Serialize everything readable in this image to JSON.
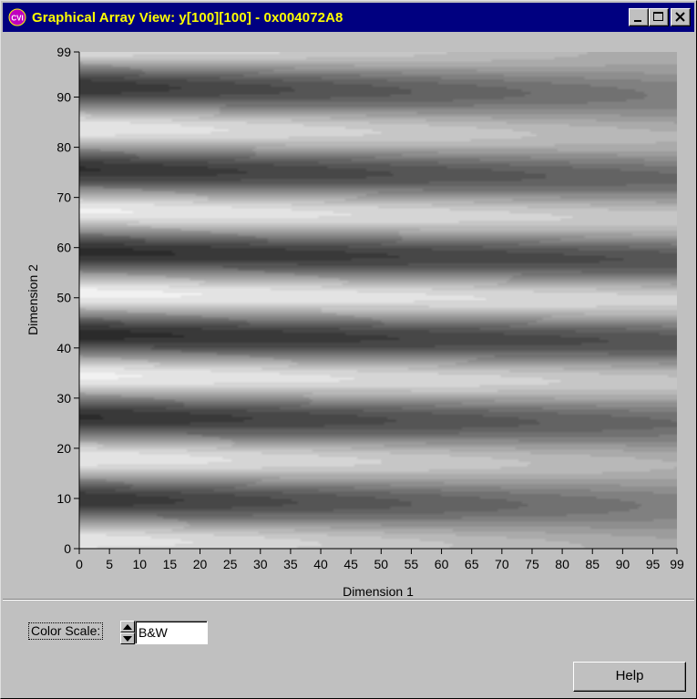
{
  "window": {
    "title": "Graphical Array View: y[100][100] - 0x004072A8",
    "app_icon_text": "CVI",
    "buttons": [
      "minimize",
      "maximize",
      "close"
    ]
  },
  "chart_data": {
    "type": "heatmap",
    "title": "",
    "xlabel": "Dimension 1",
    "ylabel": "Dimension 2",
    "xlim": [
      0,
      99
    ],
    "ylim": [
      0,
      99
    ],
    "x_ticks": [
      "0",
      "5",
      "10",
      "15",
      "20",
      "25",
      "30",
      "35",
      "40",
      "45",
      "50",
      "55",
      "60",
      "65",
      "70",
      "75",
      "80",
      "85",
      "90",
      "95",
      "99"
    ],
    "y_ticks": [
      "0",
      "10",
      "20",
      "30",
      "40",
      "50",
      "60",
      "70",
      "80",
      "90",
      "99"
    ],
    "colormap": "grayscale (B&W)",
    "grid_size": [
      100,
      100
    ]
  },
  "controls": {
    "color_scale_label": "Color Scale:",
    "color_scale_value": "B&W",
    "help_label": "Help"
  },
  "colors": {
    "titlebar_bg": "#000080",
    "titlebar_text": "#ffff00",
    "window_bg": "#c0c0c0"
  }
}
